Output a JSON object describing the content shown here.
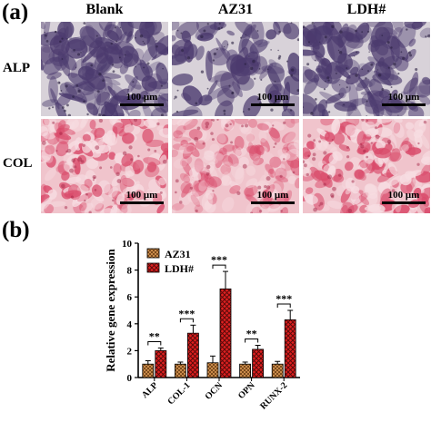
{
  "panel_a": {
    "label": "(a)",
    "columns": [
      "Blank",
      "AZ31",
      "LDH#"
    ],
    "rows": [
      "ALP",
      "COL"
    ],
    "scale_bar": "100 μm",
    "colors": {
      "alp_stain": "#4b3a6e",
      "alp_bg": "#d8d2d9",
      "col_stain": "#d94a6a",
      "col_bg": "#f0c4cc"
    }
  },
  "panel_b": {
    "label": "(b)"
  },
  "chart_data": {
    "type": "bar",
    "categories": [
      "ALP",
      "COL-1",
      "OCN",
      "OPN",
      "RUNX-2"
    ],
    "ylabel": "Relative gene expression",
    "xlabel": "",
    "ylim": [
      0,
      10
    ],
    "yticks": [
      0,
      2,
      4,
      6,
      8,
      10
    ],
    "legend_position": "top-left",
    "series": [
      {
        "name": "AZ31",
        "values": [
          1.0,
          1.0,
          1.1,
          1.0,
          1.0
        ],
        "errors": [
          0.25,
          0.15,
          0.5,
          0.15,
          0.2
        ],
        "color": "#b07030"
      },
      {
        "name": "LDH#",
        "values": [
          2.0,
          3.3,
          6.6,
          2.1,
          4.3
        ],
        "errors": [
          0.2,
          0.6,
          1.3,
          0.3,
          0.7
        ],
        "color": "#cc1a1a"
      }
    ],
    "significance": [
      "**",
      "***",
      "***",
      "**",
      "***"
    ]
  }
}
